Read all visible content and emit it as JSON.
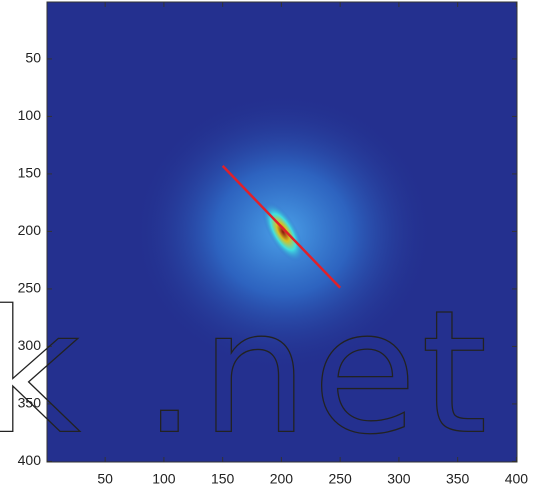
{
  "chart_data": {
    "type": "heatmap",
    "xlim": [
      0.5,
      400.5
    ],
    "ylim": [
      0.5,
      400.5
    ],
    "y_reversed": true,
    "xticks": [
      50,
      100,
      150,
      200,
      250,
      300,
      350,
      400
    ],
    "yticks": [
      50,
      100,
      150,
      200,
      250,
      300,
      350,
      400
    ],
    "series": [
      {
        "color": "#e0202a",
        "x": [
          150,
          250
        ],
        "values": [
          143,
          249
        ]
      }
    ],
    "watermark": "k .net"
  }
}
